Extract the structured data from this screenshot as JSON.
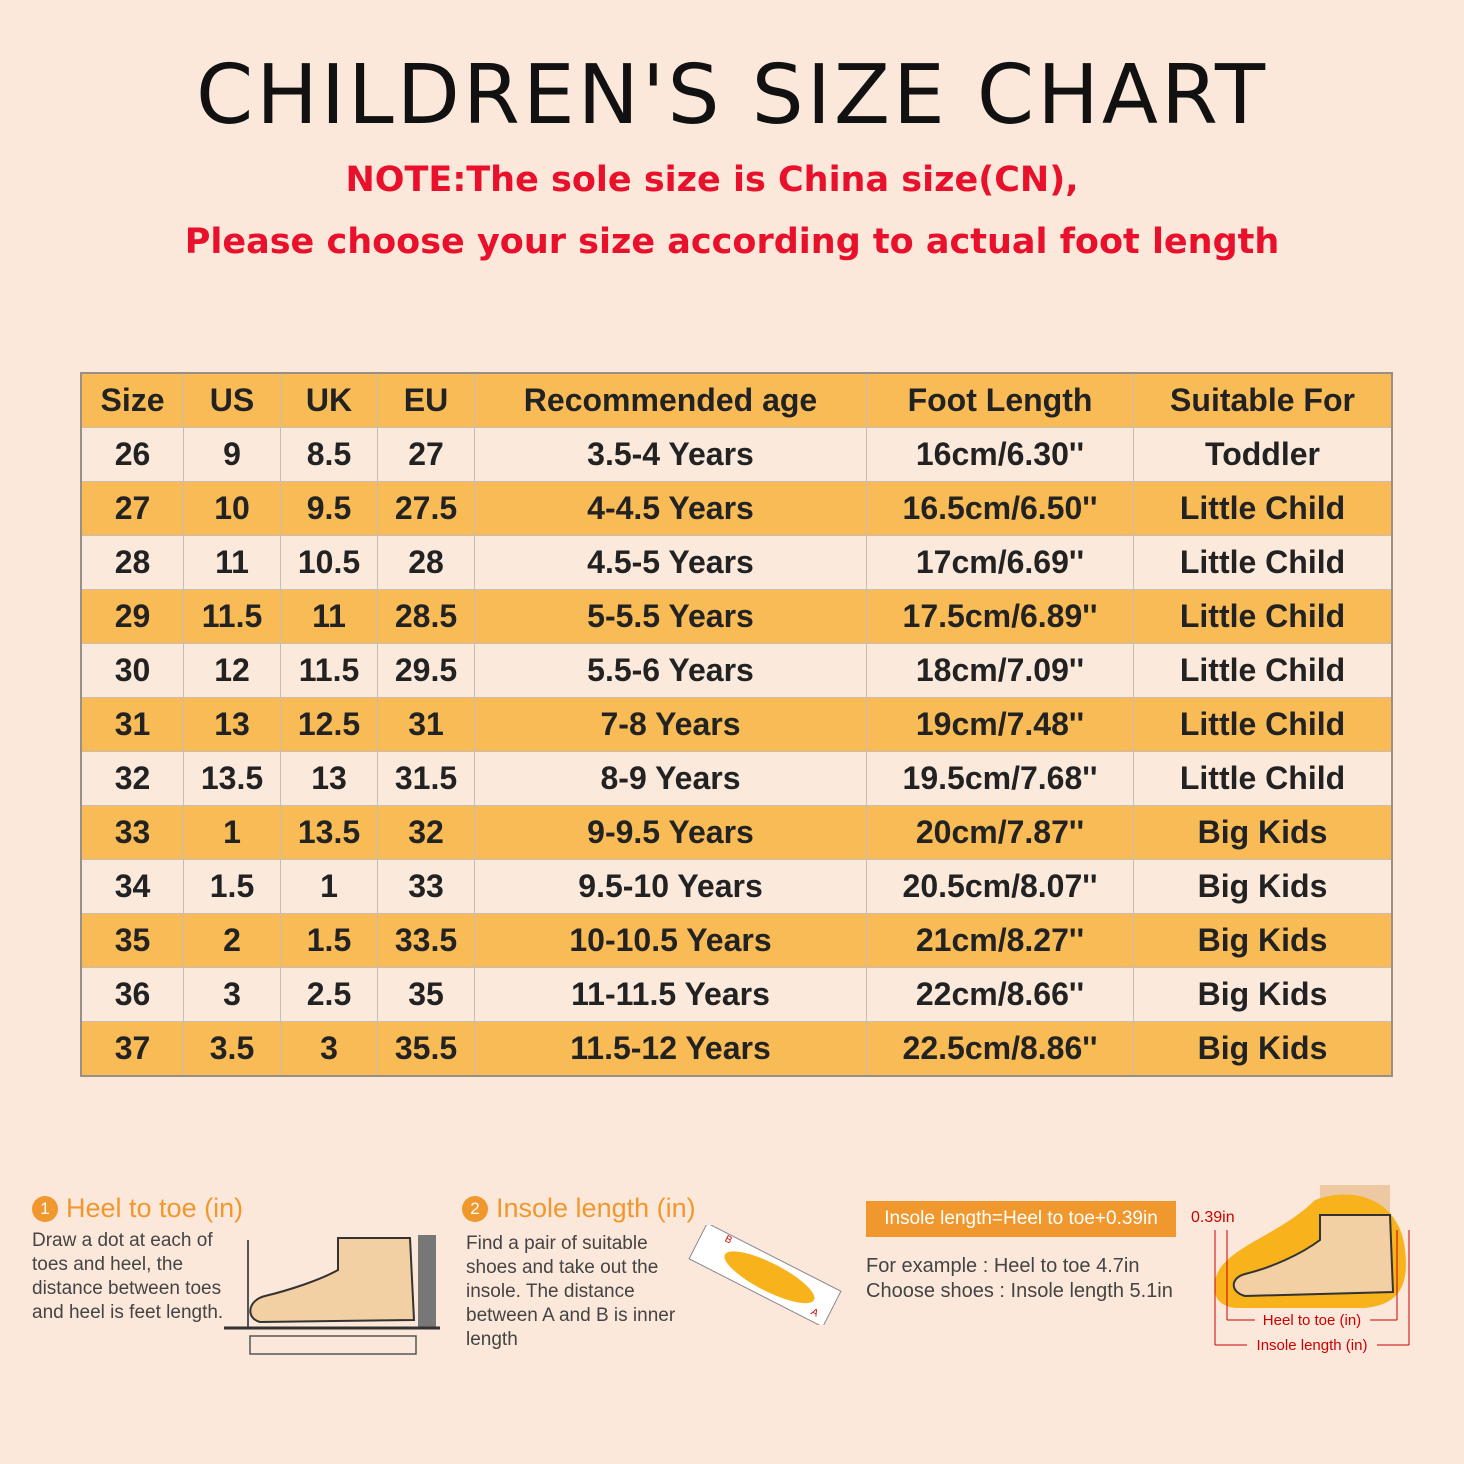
{
  "title": "CHILDREN'S SIZE CHART",
  "notes": [
    "NOTE:The sole size is China size(CN),",
    "Please choose your size according to actual foot length"
  ],
  "table": {
    "header": [
      "Size",
      "US",
      "UK",
      "EU",
      "Recommended age",
      "Foot Length",
      "Suitable For"
    ],
    "rows": [
      [
        "26",
        "9",
        "8.5",
        "27",
        "3.5-4 Years",
        "16cm/6.30''",
        "Toddler"
      ],
      [
        "27",
        "10",
        "9.5",
        "27.5",
        "4-4.5 Years",
        "16.5cm/6.50''",
        "Little Child"
      ],
      [
        "28",
        "11",
        "10.5",
        "28",
        "4.5-5 Years",
        "17cm/6.69''",
        "Little Child"
      ],
      [
        "29",
        "11.5",
        "11",
        "28.5",
        "5-5.5 Years",
        "17.5cm/6.89''",
        "Little Child"
      ],
      [
        "30",
        "12",
        "11.5",
        "29.5",
        "5.5-6 Years",
        "18cm/7.09''",
        "Little Child"
      ],
      [
        "31",
        "13",
        "12.5",
        "31",
        "7-8 Years",
        "19cm/7.48''",
        "Little Child"
      ],
      [
        "32",
        "13.5",
        "13",
        "31.5",
        "8-9 Years",
        "19.5cm/7.68''",
        "Little Child"
      ],
      [
        "33",
        "1",
        "13.5",
        "32",
        "9-9.5 Years",
        "20cm/7.87''",
        "Big Kids"
      ],
      [
        "34",
        "1.5",
        "1",
        "33",
        "9.5-10 Years",
        "20.5cm/8.07''",
        "Big Kids"
      ],
      [
        "35",
        "2",
        "1.5",
        "33.5",
        "10-10.5 Years",
        "21cm/8.27''",
        "Big Kids"
      ],
      [
        "36",
        "3",
        "2.5",
        "35",
        "11-11.5 Years",
        "22cm/8.66''",
        "Big Kids"
      ],
      [
        "37",
        "3.5",
        "3",
        "35.5",
        "11.5-12 Years",
        "22.5cm/8.86''",
        "Big Kids"
      ]
    ]
  },
  "steps": [
    {
      "number": "1",
      "title": "Heel to toe (in)",
      "text": "Draw a dot at each of toes and heel, the distance between toes and heel is feet length."
    },
    {
      "number": "2",
      "title": "Insole length (in)",
      "text": "Find a pair of suitable shoes and take out the insole. The distance between A and B is inner length",
      "points": [
        "A",
        "B"
      ]
    }
  ],
  "formula": {
    "label": "Insole length=Heel to toe+0.39in",
    "example": [
      "For example : Heel to toe  4.7in",
      "Choose shoes : Insole length 5.1in"
    ]
  },
  "diagram": {
    "gap": "0.39in",
    "heel_to_toe": "Heel to toe (in)",
    "insole_length": "Insole length (in)"
  }
}
